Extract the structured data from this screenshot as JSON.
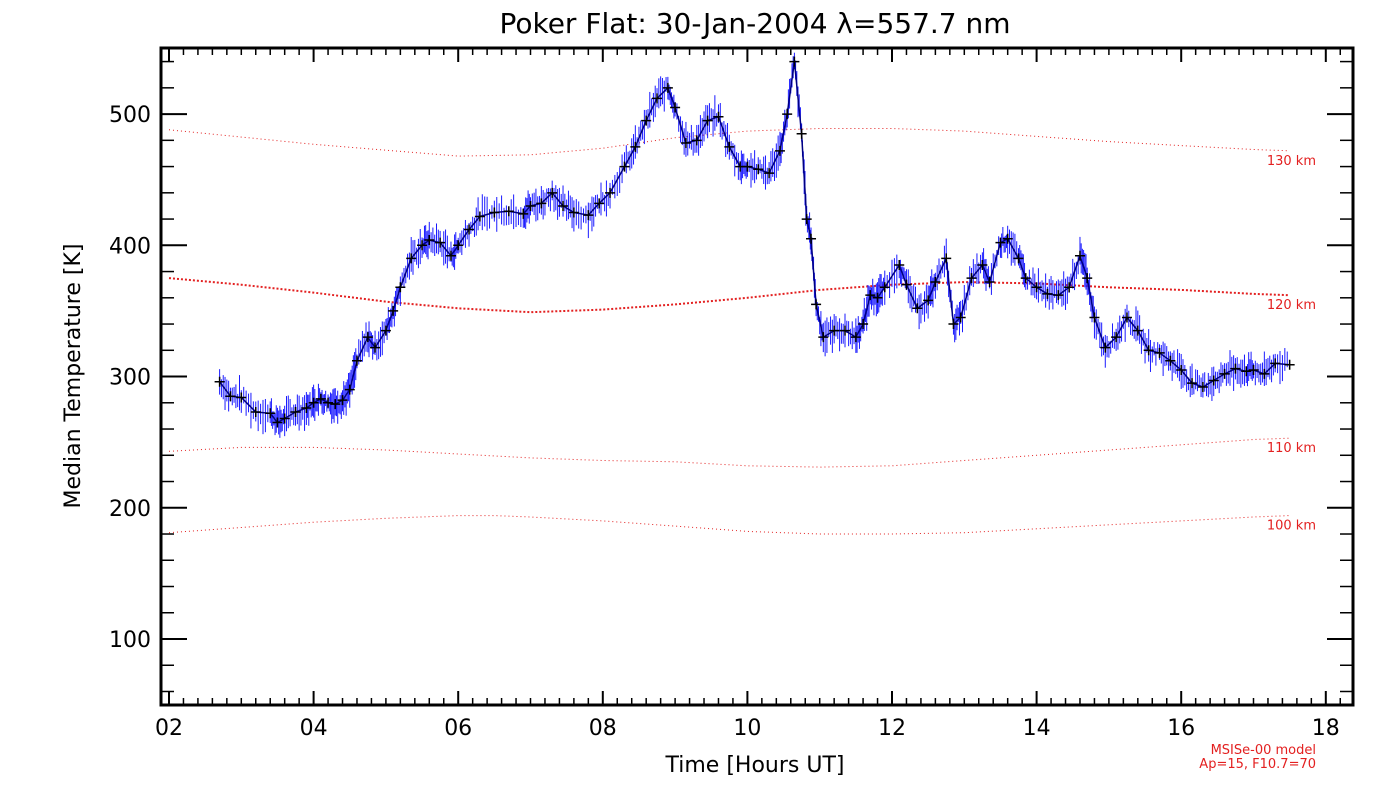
{
  "chart_data": {
    "type": "line",
    "title": "Poker Flat: 30-Jan-2004 λ=557.7 nm",
    "xlabel": "Time [Hours UT]",
    "ylabel": "Median Temperature [K]",
    "xlim": [
      2,
      18.3
    ],
    "ylim": [
      50,
      550
    ],
    "x_ticks": [
      2,
      4,
      6,
      8,
      10,
      12,
      14,
      16,
      18
    ],
    "x_tick_labels": [
      "02",
      "04",
      "06",
      "08",
      "10",
      "12",
      "14",
      "16",
      "18"
    ],
    "y_ticks": [
      100,
      200,
      300,
      400,
      500
    ],
    "y_tick_labels": [
      "100",
      "200",
      "300",
      "400",
      "500"
    ],
    "grid": false,
    "colors": {
      "data_line": "#000080",
      "error_bars": "#1a1aff",
      "markers": "#000000",
      "model": "#e32020"
    },
    "series": [
      {
        "x": [
          2.7,
          2.85,
          3.0,
          3.2,
          3.4,
          3.5,
          3.6,
          3.75,
          3.9,
          4.0,
          4.1,
          4.2,
          4.3,
          4.4,
          4.5,
          4.6,
          4.75,
          4.85,
          5.0,
          5.1,
          5.2,
          5.35,
          5.5,
          5.6,
          5.75,
          5.9,
          6.0,
          6.15,
          6.3,
          6.5,
          6.7,
          6.9,
          7.0,
          7.15,
          7.3,
          7.45,
          7.6,
          7.8,
          7.95,
          8.1,
          8.3,
          8.45,
          8.6,
          8.75,
          8.9,
          9.0,
          9.15,
          9.3,
          9.45,
          9.6,
          9.75,
          9.9,
          10.0,
          10.15,
          10.3,
          10.45,
          10.55,
          10.65,
          10.75,
          10.82,
          10.88,
          10.95,
          11.05,
          11.2,
          11.35,
          11.5,
          11.6,
          11.7,
          11.8,
          11.9,
          12.1,
          12.2,
          12.35,
          12.5,
          12.6,
          12.75,
          12.85,
          12.95,
          13.1,
          13.25,
          13.35,
          13.5,
          13.6,
          13.75,
          13.85,
          14.0,
          14.15,
          14.3,
          14.45,
          14.6,
          14.7,
          14.8,
          14.95,
          15.1,
          15.25,
          15.4,
          15.55,
          15.7,
          15.85,
          16.0,
          16.15,
          16.3,
          16.45,
          16.6,
          16.75,
          16.9,
          17.0,
          17.15,
          17.3,
          17.5
        ],
        "y": [
          296,
          285,
          284,
          273,
          272,
          265,
          268,
          273,
          276,
          280,
          283,
          280,
          279,
          282,
          290,
          312,
          330,
          322,
          335,
          350,
          368,
          390,
          400,
          404,
          402,
          392,
          400,
          412,
          422,
          425,
          426,
          424,
          430,
          432,
          440,
          430,
          425,
          423,
          432,
          440,
          460,
          475,
          495,
          512,
          520,
          505,
          478,
          480,
          495,
          498,
          475,
          460,
          460,
          458,
          455,
          472,
          500,
          540,
          485,
          420,
          405,
          355,
          330,
          335,
          335,
          330,
          340,
          362,
          360,
          368,
          385,
          370,
          352,
          358,
          372,
          390,
          340,
          345,
          375,
          385,
          372,
          402,
          405,
          390,
          375,
          368,
          363,
          362,
          368,
          392,
          375,
          345,
          322,
          330,
          345,
          335,
          320,
          318,
          312,
          305,
          295,
          292,
          297,
          302,
          306,
          304,
          305,
          302,
          310,
          309
        ]
      }
    ],
    "model_curves": [
      {
        "label": "130 km",
        "x": [
          2,
          4,
          6,
          7,
          8,
          9,
          10,
          11,
          12,
          13,
          14,
          15,
          16,
          17,
          17.5
        ],
        "y": [
          488,
          477,
          468,
          469,
          474,
          482,
          487,
          489,
          489,
          487,
          483,
          479,
          476,
          473,
          472
        ]
      },
      {
        "label": "120 km",
        "x": [
          2,
          3,
          4,
          5,
          6,
          7,
          8,
          9,
          10,
          11,
          12,
          13,
          14,
          15,
          16,
          17,
          17.5
        ],
        "y": [
          375,
          370,
          364,
          357,
          352,
          349,
          351,
          355,
          360,
          366,
          370,
          372,
          371,
          368,
          366,
          363,
          362
        ]
      },
      {
        "label": "110 km",
        "x": [
          2,
          3,
          4,
          5,
          6,
          7,
          8,
          9,
          10,
          11,
          12,
          13,
          14,
          15,
          16,
          17,
          17.5
        ],
        "y": [
          243,
          246,
          246,
          244,
          241,
          238,
          236,
          235,
          232,
          231,
          232,
          236,
          240,
          244,
          248,
          252,
          253
        ]
      },
      {
        "label": "100 km",
        "x": [
          2,
          3,
          4,
          5,
          6,
          6.5,
          7,
          8,
          9,
          10,
          11,
          12,
          13,
          14,
          15,
          16,
          17,
          17.5
        ],
        "y": [
          181,
          185,
          189,
          192,
          194,
          194,
          193,
          190,
          186,
          182,
          180,
          180,
          181,
          184,
          187,
          190,
          193,
          194
        ]
      }
    ],
    "footnote": [
      "MSISe-00 model",
      "Ap=15, F10.7=70"
    ]
  }
}
